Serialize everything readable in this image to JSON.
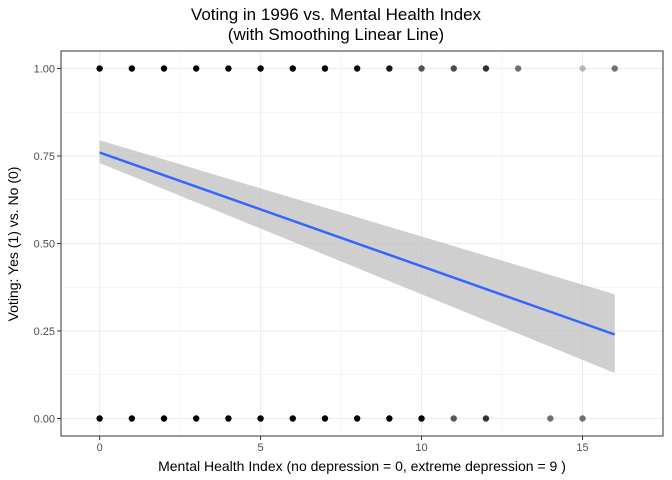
{
  "chart_data": {
    "type": "scatter",
    "title": "Voting in 1996 vs. Mental Health Index",
    "subtitle": "(with Smoothing Linear Line)",
    "xlabel": "Mental Health Index (no depression = 0, extreme depression = 9 )",
    "ylabel": "Voting: Yes (1) vs. No (0)",
    "xlim": [
      -1.2,
      17.5
    ],
    "ylim": [
      -0.05,
      1.05
    ],
    "x_ticks": [
      0,
      5,
      10,
      15
    ],
    "x_tick_labels": [
      "0",
      "5",
      "10",
      "15"
    ],
    "y_ticks": [
      0,
      0.25,
      0.5,
      0.75,
      1
    ],
    "y_tick_labels": [
      "0.00",
      "0.25",
      "0.50",
      "0.75",
      "1.00"
    ],
    "grid": true,
    "series": [
      {
        "kind": "points",
        "points": [
          {
            "x": 0,
            "y": 1,
            "opacity": 1
          },
          {
            "x": 1,
            "y": 1,
            "opacity": 1
          },
          {
            "x": 2,
            "y": 1,
            "opacity": 1
          },
          {
            "x": 3,
            "y": 1,
            "opacity": 1
          },
          {
            "x": 4,
            "y": 1,
            "opacity": 1
          },
          {
            "x": 5,
            "y": 1,
            "opacity": 1
          },
          {
            "x": 6,
            "y": 1,
            "opacity": 1
          },
          {
            "x": 7,
            "y": 1,
            "opacity": 1
          },
          {
            "x": 8,
            "y": 1,
            "opacity": 0.95
          },
          {
            "x": 9,
            "y": 1,
            "opacity": 0.9
          },
          {
            "x": 10,
            "y": 1,
            "opacity": 0.65
          },
          {
            "x": 11,
            "y": 1,
            "opacity": 0.7
          },
          {
            "x": 12,
            "y": 1,
            "opacity": 0.8
          },
          {
            "x": 13,
            "y": 1,
            "opacity": 0.55
          },
          {
            "x": 15,
            "y": 1,
            "opacity": 0.25
          },
          {
            "x": 16,
            "y": 1,
            "opacity": 0.55
          },
          {
            "x": 0,
            "y": 0,
            "opacity": 1
          },
          {
            "x": 1,
            "y": 0,
            "opacity": 1
          },
          {
            "x": 2,
            "y": 0,
            "opacity": 1
          },
          {
            "x": 3,
            "y": 0,
            "opacity": 1
          },
          {
            "x": 4,
            "y": 0,
            "opacity": 1
          },
          {
            "x": 5,
            "y": 0,
            "opacity": 1
          },
          {
            "x": 6,
            "y": 0,
            "opacity": 1
          },
          {
            "x": 7,
            "y": 0,
            "opacity": 1
          },
          {
            "x": 8,
            "y": 0,
            "opacity": 1
          },
          {
            "x": 9,
            "y": 0,
            "opacity": 1
          },
          {
            "x": 10,
            "y": 0,
            "opacity": 1
          },
          {
            "x": 11,
            "y": 0,
            "opacity": 0.65
          },
          {
            "x": 12,
            "y": 0,
            "opacity": 0.8
          },
          {
            "x": 14,
            "y": 0,
            "opacity": 0.55
          },
          {
            "x": 15,
            "y": 0,
            "opacity": 0.55
          }
        ]
      },
      {
        "kind": "linear-fit",
        "x": [
          0,
          16
        ],
        "y": [
          0.76,
          0.24
        ],
        "ci_lower": [
          0.73,
          0.13
        ],
        "ci_upper": [
          0.795,
          0.355
        ]
      }
    ],
    "colors": {
      "line": "#3366ff",
      "ribbon": "#bfbfbf",
      "point": "#000000",
      "grid": "#ebebeb",
      "panel_border": "#333333"
    }
  }
}
